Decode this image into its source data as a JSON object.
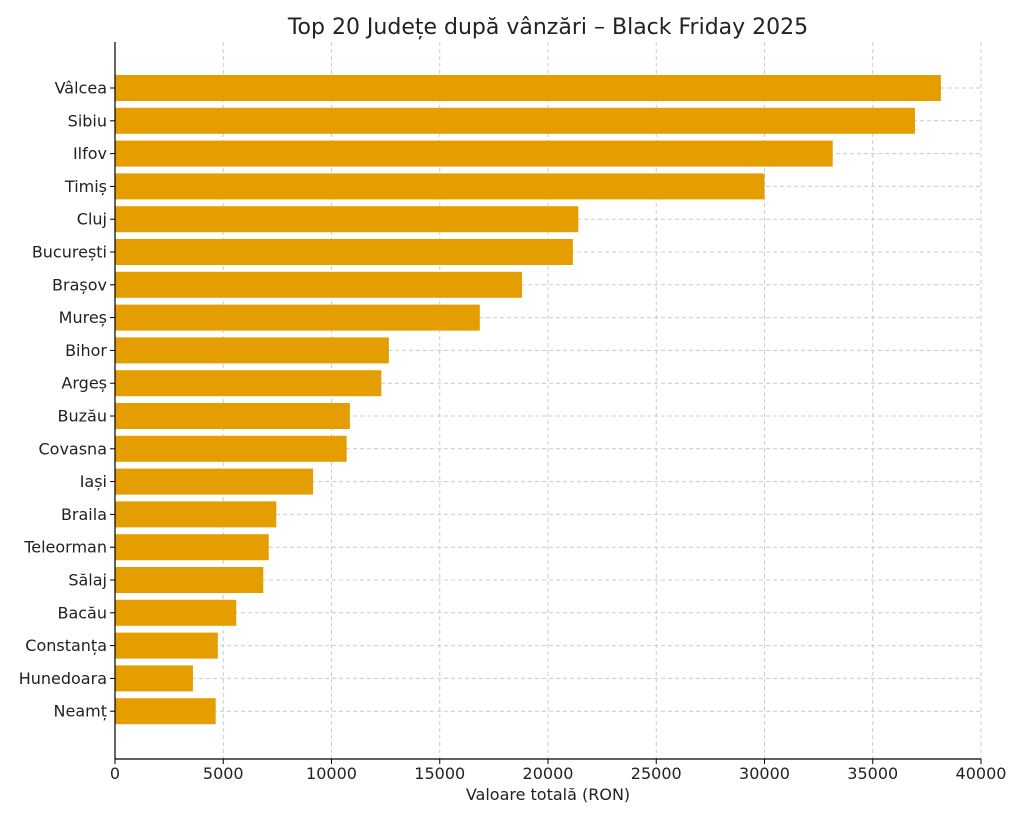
{
  "chart_data": {
    "type": "bar",
    "orientation": "horizontal",
    "title": "Top 20 Județe după vânzări – Black Friday 2025",
    "xlabel": "Valoare totală (RON)",
    "ylabel": "",
    "xlim": [
      0,
      40000
    ],
    "xticks": [
      0,
      5000,
      10000,
      15000,
      20000,
      25000,
      30000,
      35000,
      40000
    ],
    "grid": true,
    "bar_color": "#e59e00",
    "categories": [
      "Vâlcea",
      "Sibiu",
      "Ilfov",
      "Timiș",
      "Cluj",
      "București",
      "Brașov",
      "Mureș",
      "Bihor",
      "Argeș",
      "Buzău",
      "Covasna",
      "Iași",
      "Braila",
      "Teleorman",
      "Sălaj",
      "Bacău",
      "Constanța",
      "Hunedoara",
      "Neamț"
    ],
    "values": [
      38150,
      36950,
      33150,
      30000,
      21400,
      21150,
      18800,
      16850,
      12650,
      12300,
      10850,
      10700,
      9150,
      7450,
      7100,
      6850,
      5600,
      4750,
      3600,
      4650
    ]
  }
}
